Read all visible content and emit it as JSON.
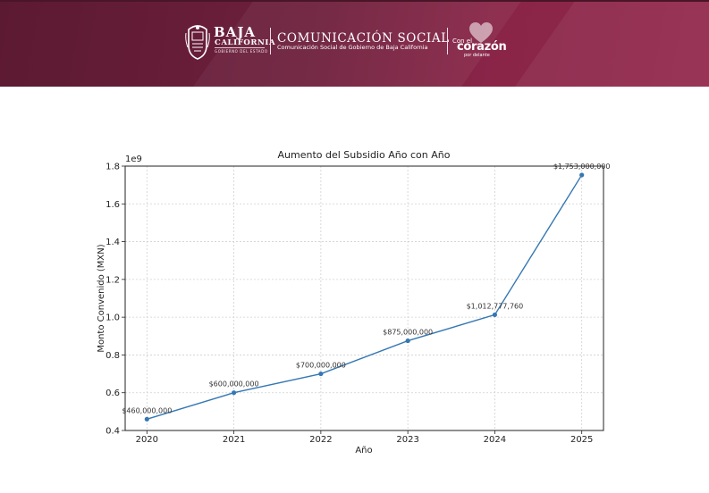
{
  "header": {
    "logo_name": "BAJA",
    "logo_subtitle": "CALIFORNIA",
    "logo_tagline": "GOBIERNO DEL ESTADO",
    "department": "COMUNICACIÓN SOCIAL",
    "department_subtitle": "Comunicación Social de Gobierno de Baja California",
    "slogan_prefix": "Con el",
    "slogan_main": "corazón",
    "slogan_suffix": "por delante",
    "bg_color_left": "#5c1a32",
    "bg_color_right": "#93284c",
    "icons": [
      "coat-of-arms-icon",
      "heart-logo-icon"
    ]
  },
  "chart_data": {
    "type": "line",
    "title": "Aumento del Subsidio Año con Año",
    "xlabel": "Año",
    "ylabel": "Monto Convenido (MXN)",
    "y_scale_label": "1e9",
    "x": [
      2020,
      2021,
      2022,
      2023,
      2024,
      2025
    ],
    "values": [
      460000000,
      600000000,
      700000000,
      875000000,
      1012777760,
      1753000000
    ],
    "point_labels": [
      "$460,000,000",
      "$600,000,000",
      "$700,000,000",
      "$875,000,000",
      "$1,012,777,760",
      "$1,753,000,000"
    ],
    "y_ticks": [
      "0.4",
      "0.6",
      "0.8",
      "1.0",
      "1.2",
      "1.4",
      "1.6",
      "1.8"
    ],
    "x_ticks": [
      "2020",
      "2021",
      "2022",
      "2023",
      "2024",
      "2025"
    ],
    "ylim": [
      400000000,
      1800000000
    ],
    "xlim": [
      2019.75,
      2025.25
    ],
    "grid": true,
    "line_color": "#3477b3"
  }
}
